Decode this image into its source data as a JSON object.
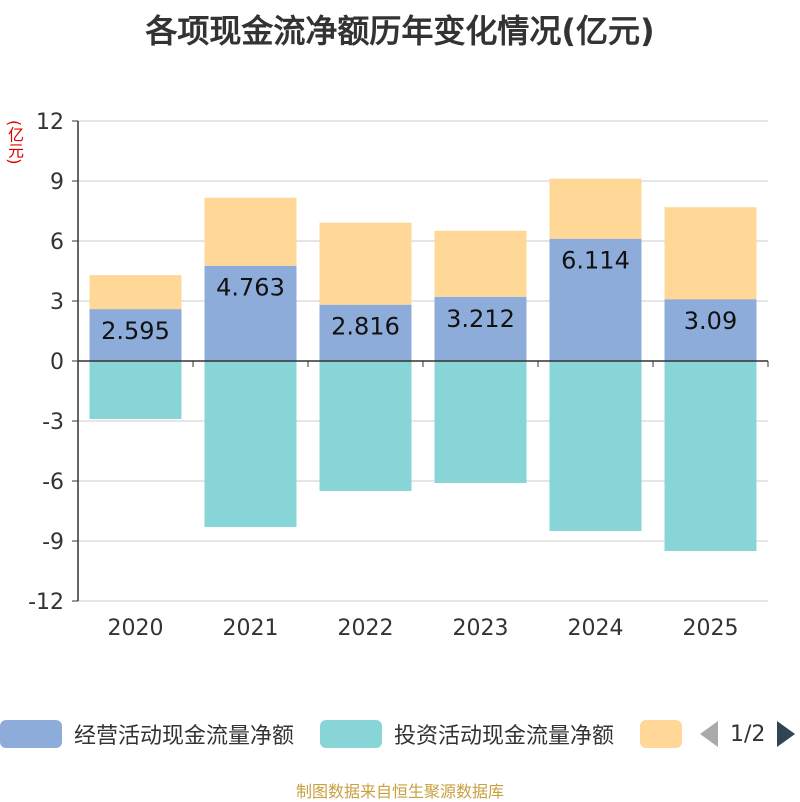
{
  "chart_data": {
    "type": "bar",
    "stacked": true,
    "title": "各项现金流净额历年变化情况(亿元)",
    "ylabel": "(亿元)",
    "xlabel": "",
    "categories": [
      "2020",
      "2021",
      "2022",
      "2023",
      "2024",
      "2025"
    ],
    "yticks": [
      12,
      9,
      6,
      3,
      0,
      -3,
      -6,
      -9,
      -12
    ],
    "ylim": [
      -12,
      12
    ],
    "series": [
      {
        "name": "经营活动现金流量净额",
        "color": "#8eacda",
        "values": [
          2.595,
          4.763,
          2.816,
          3.212,
          6.114,
          3.09
        ],
        "labels": [
          "2.595",
          "4.763",
          "2.816",
          "3.212",
          "6.114",
          "3.09"
        ]
      },
      {
        "name": "投资活动现金流量净额",
        "color": "#88d5d8",
        "values": [
          -2.9,
          -8.3,
          -6.5,
          -6.1,
          -8.5,
          -9.5
        ]
      },
      {
        "name": "",
        "color": "#ffd898",
        "values": [
          1.7,
          3.4,
          4.1,
          3.3,
          3.0,
          4.6
        ]
      }
    ]
  },
  "legend": {
    "items": [
      {
        "label": "经营活动现金流量净额",
        "color": "#8eacda"
      },
      {
        "label": "投资活动现金流量净额",
        "color": "#88d5d8"
      },
      {
        "label": "",
        "color": "#ffd898"
      }
    ],
    "page": "1/2"
  },
  "footer": "制图数据来自恒生聚源数据库"
}
